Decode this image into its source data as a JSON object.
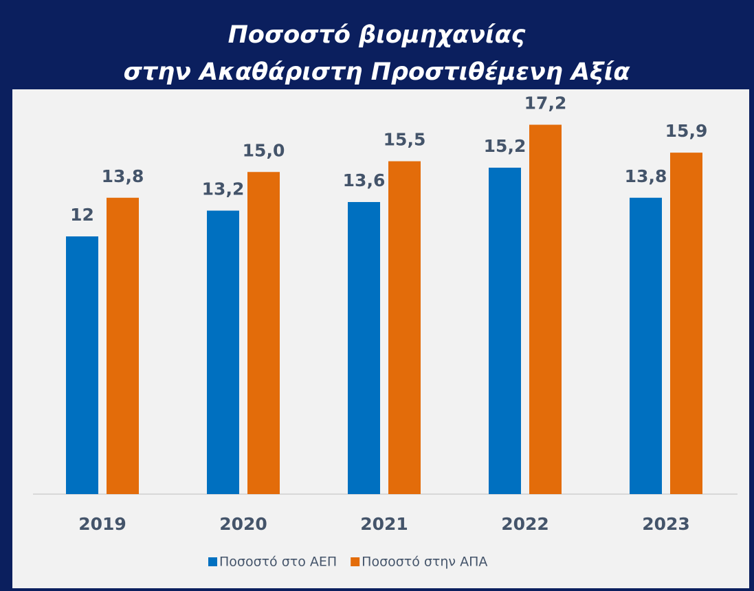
{
  "chart_data": {
    "type": "bar",
    "title": [
      "Ποσοστό βιομηχανίας",
      "στην Ακαθάριστη Προστιθέμενη Αξία"
    ],
    "categories": [
      "2019",
      "2020",
      "2021",
      "2022",
      "2023"
    ],
    "series": [
      {
        "name": "Ποσοστό στο ΑΕΠ",
        "color": "#0070c0",
        "values": [
          12,
          13.2,
          13.6,
          15.2,
          13.8
        ],
        "value_labels": [
          "12",
          "13,2",
          "13,6",
          "15,2",
          "13,8"
        ]
      },
      {
        "name": "Ποσοστό στην ΑΠΑ",
        "color": "#e36c0a",
        "values": [
          13.8,
          15.0,
          15.5,
          17.2,
          15.9
        ],
        "value_labels": [
          "13,8",
          "15,0",
          "15,5",
          "17,2",
          "15,9"
        ]
      }
    ],
    "legend": "bottom"
  }
}
